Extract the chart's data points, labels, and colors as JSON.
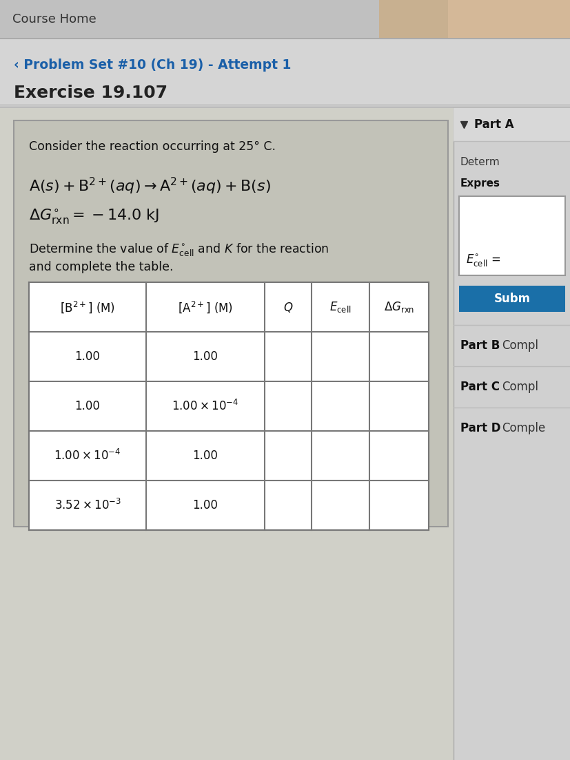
{
  "page_bg": "#c8c8c8",
  "header_bg": "#c0c0c0",
  "header_text": "Course Home",
  "header_color": "#333333",
  "breadcrumb": "‹ Problem Set #10 (Ch 19) - Attempt 1",
  "breadcrumb_color": "#1a5fa8",
  "exercise_title": "Exercise 19.107",
  "exercise_color": "#222222",
  "main_panel_bg": "#c2c2b8",
  "main_panel_border": "#999999",
  "consider_text": "Consider the reaction occurring at 25° C.",
  "right_panel_bg": "#d0d0d0",
  "submit_bg": "#1a6fa8",
  "submit_text": "Subm",
  "part_a_text": "Part A",
  "determ_text": "Determ",
  "expres_text": "Expres",
  "part_b_text": "Part B",
  "part_b_suffix": "Compl",
  "part_c_text": "Part C",
  "part_c_suffix": "Compl",
  "part_d_text": "Part D",
  "part_d_suffix": "Comple",
  "top_right_color": "#b8a090",
  "table_bg": "#d5d5c8",
  "table_border": "#777777",
  "table_inner_bg": "#d0d0c0"
}
